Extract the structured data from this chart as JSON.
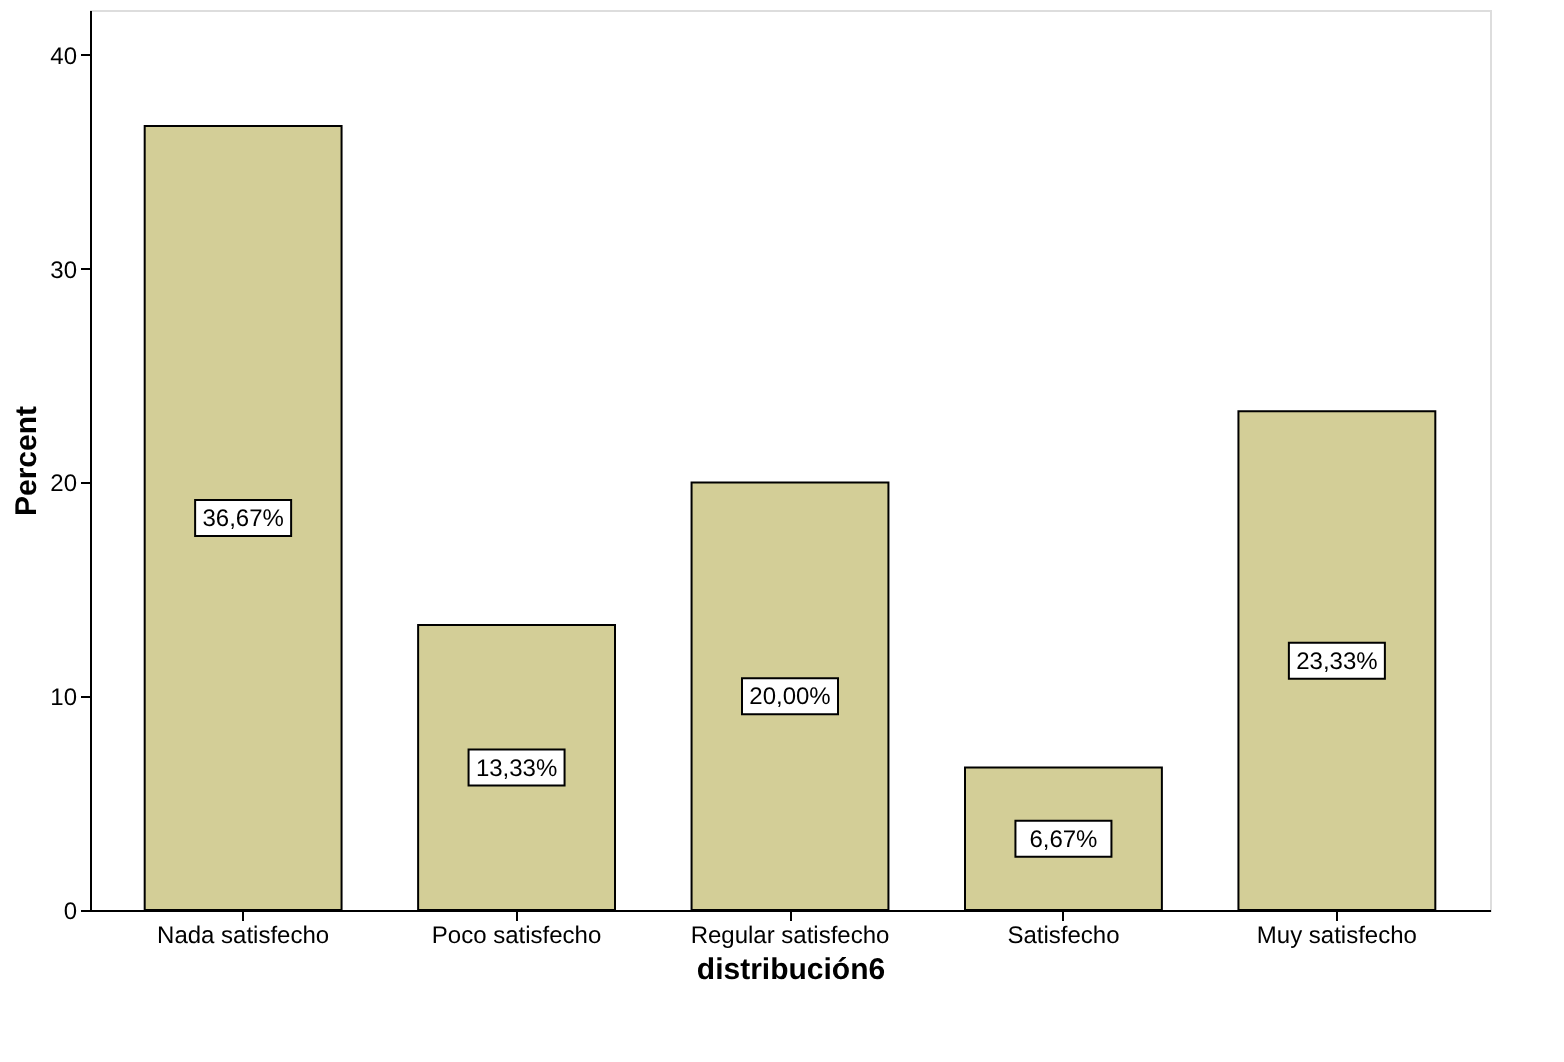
{
  "chart_data": {
    "type": "bar",
    "xlabel": "distribución6",
    "ylabel": "Percent",
    "categories": [
      "Nada satisfecho",
      "Poco satisfecho",
      "Regular satisfecho",
      "Satisfecho",
      "Muy satisfecho"
    ],
    "values": [
      36.67,
      13.33,
      20.0,
      6.67,
      23.33
    ],
    "value_labels": [
      "36,67%",
      "13,33%",
      "20,00%",
      "6,67%",
      "23,33%"
    ],
    "color": "#d3ce97",
    "ylim": [
      0,
      42.1
    ],
    "yticks": [
      0,
      10,
      20,
      30,
      40
    ],
    "grid": false
  }
}
